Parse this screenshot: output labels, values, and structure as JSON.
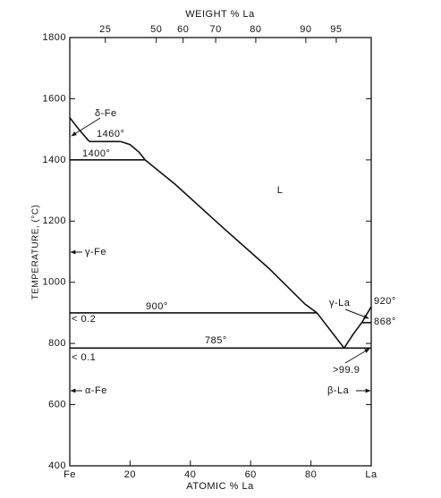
{
  "chart_data": {
    "type": "line",
    "title": "WEIGHT % La",
    "x_label": "ATOMIC % La",
    "y_label": "TEMPERATURE, (°C)",
    "color": "#111111",
    "xlim": [
      0,
      100
    ],
    "ylim": [
      400,
      1800
    ],
    "xticks": [
      {
        "value": 0,
        "label": "Fe"
      },
      20,
      40,
      60,
      80,
      {
        "value": 100,
        "label": "La"
      }
    ],
    "x2ticks": [
      {
        "value": 11.8,
        "label": "25"
      },
      {
        "value": 28.7,
        "label": "50"
      },
      {
        "value": 37.6,
        "label": "60"
      },
      {
        "value": 48.4,
        "label": "70"
      },
      {
        "value": 61.7,
        "label": "80"
      },
      {
        "value": 78.3,
        "label": "90"
      },
      {
        "value": 88.4,
        "label": "95"
      }
    ],
    "yticks": [
      400,
      600,
      800,
      1000,
      1200,
      1400,
      1600,
      1800
    ],
    "series": [
      {
        "x": [
          0,
          3,
          6.5
        ],
        "values": [
          1538,
          1500,
          1460
        ]
      },
      {
        "x": [
          6.5,
          17
        ],
        "values": [
          1460,
          1460
        ]
      },
      {
        "x": [
          17,
          20,
          23,
          25
        ],
        "values": [
          1460,
          1450,
          1425,
          1400
        ]
      },
      {
        "x": [
          0,
          25
        ],
        "values": [
          1400,
          1400
        ]
      },
      {
        "x": [
          25,
          35,
          51,
          66,
          78,
          82,
          91
        ],
        "values": [
          1400,
          1320,
          1177,
          1046,
          929,
          900,
          785
        ]
      },
      {
        "x": [
          0,
          82
        ],
        "values": [
          900,
          900
        ]
      },
      {
        "x": [
          0,
          100
        ],
        "values": [
          785,
          785
        ]
      },
      {
        "x": [
          91,
          94,
          97,
          100
        ],
        "values": [
          785,
          830,
          870,
          920
        ]
      },
      {
        "x": [
          97,
          100
        ],
        "values": [
          868,
          868
        ]
      }
    ],
    "annotations": [
      "δ-Fe",
      "1460°",
      "1400°",
      "L",
      "γ-Fe",
      "900°",
      "< 0.2",
      "785°",
      "< 0.1",
      "α-Fe",
      "γ-La",
      "920°",
      "868°",
      ">99.9",
      "β-La"
    ]
  }
}
